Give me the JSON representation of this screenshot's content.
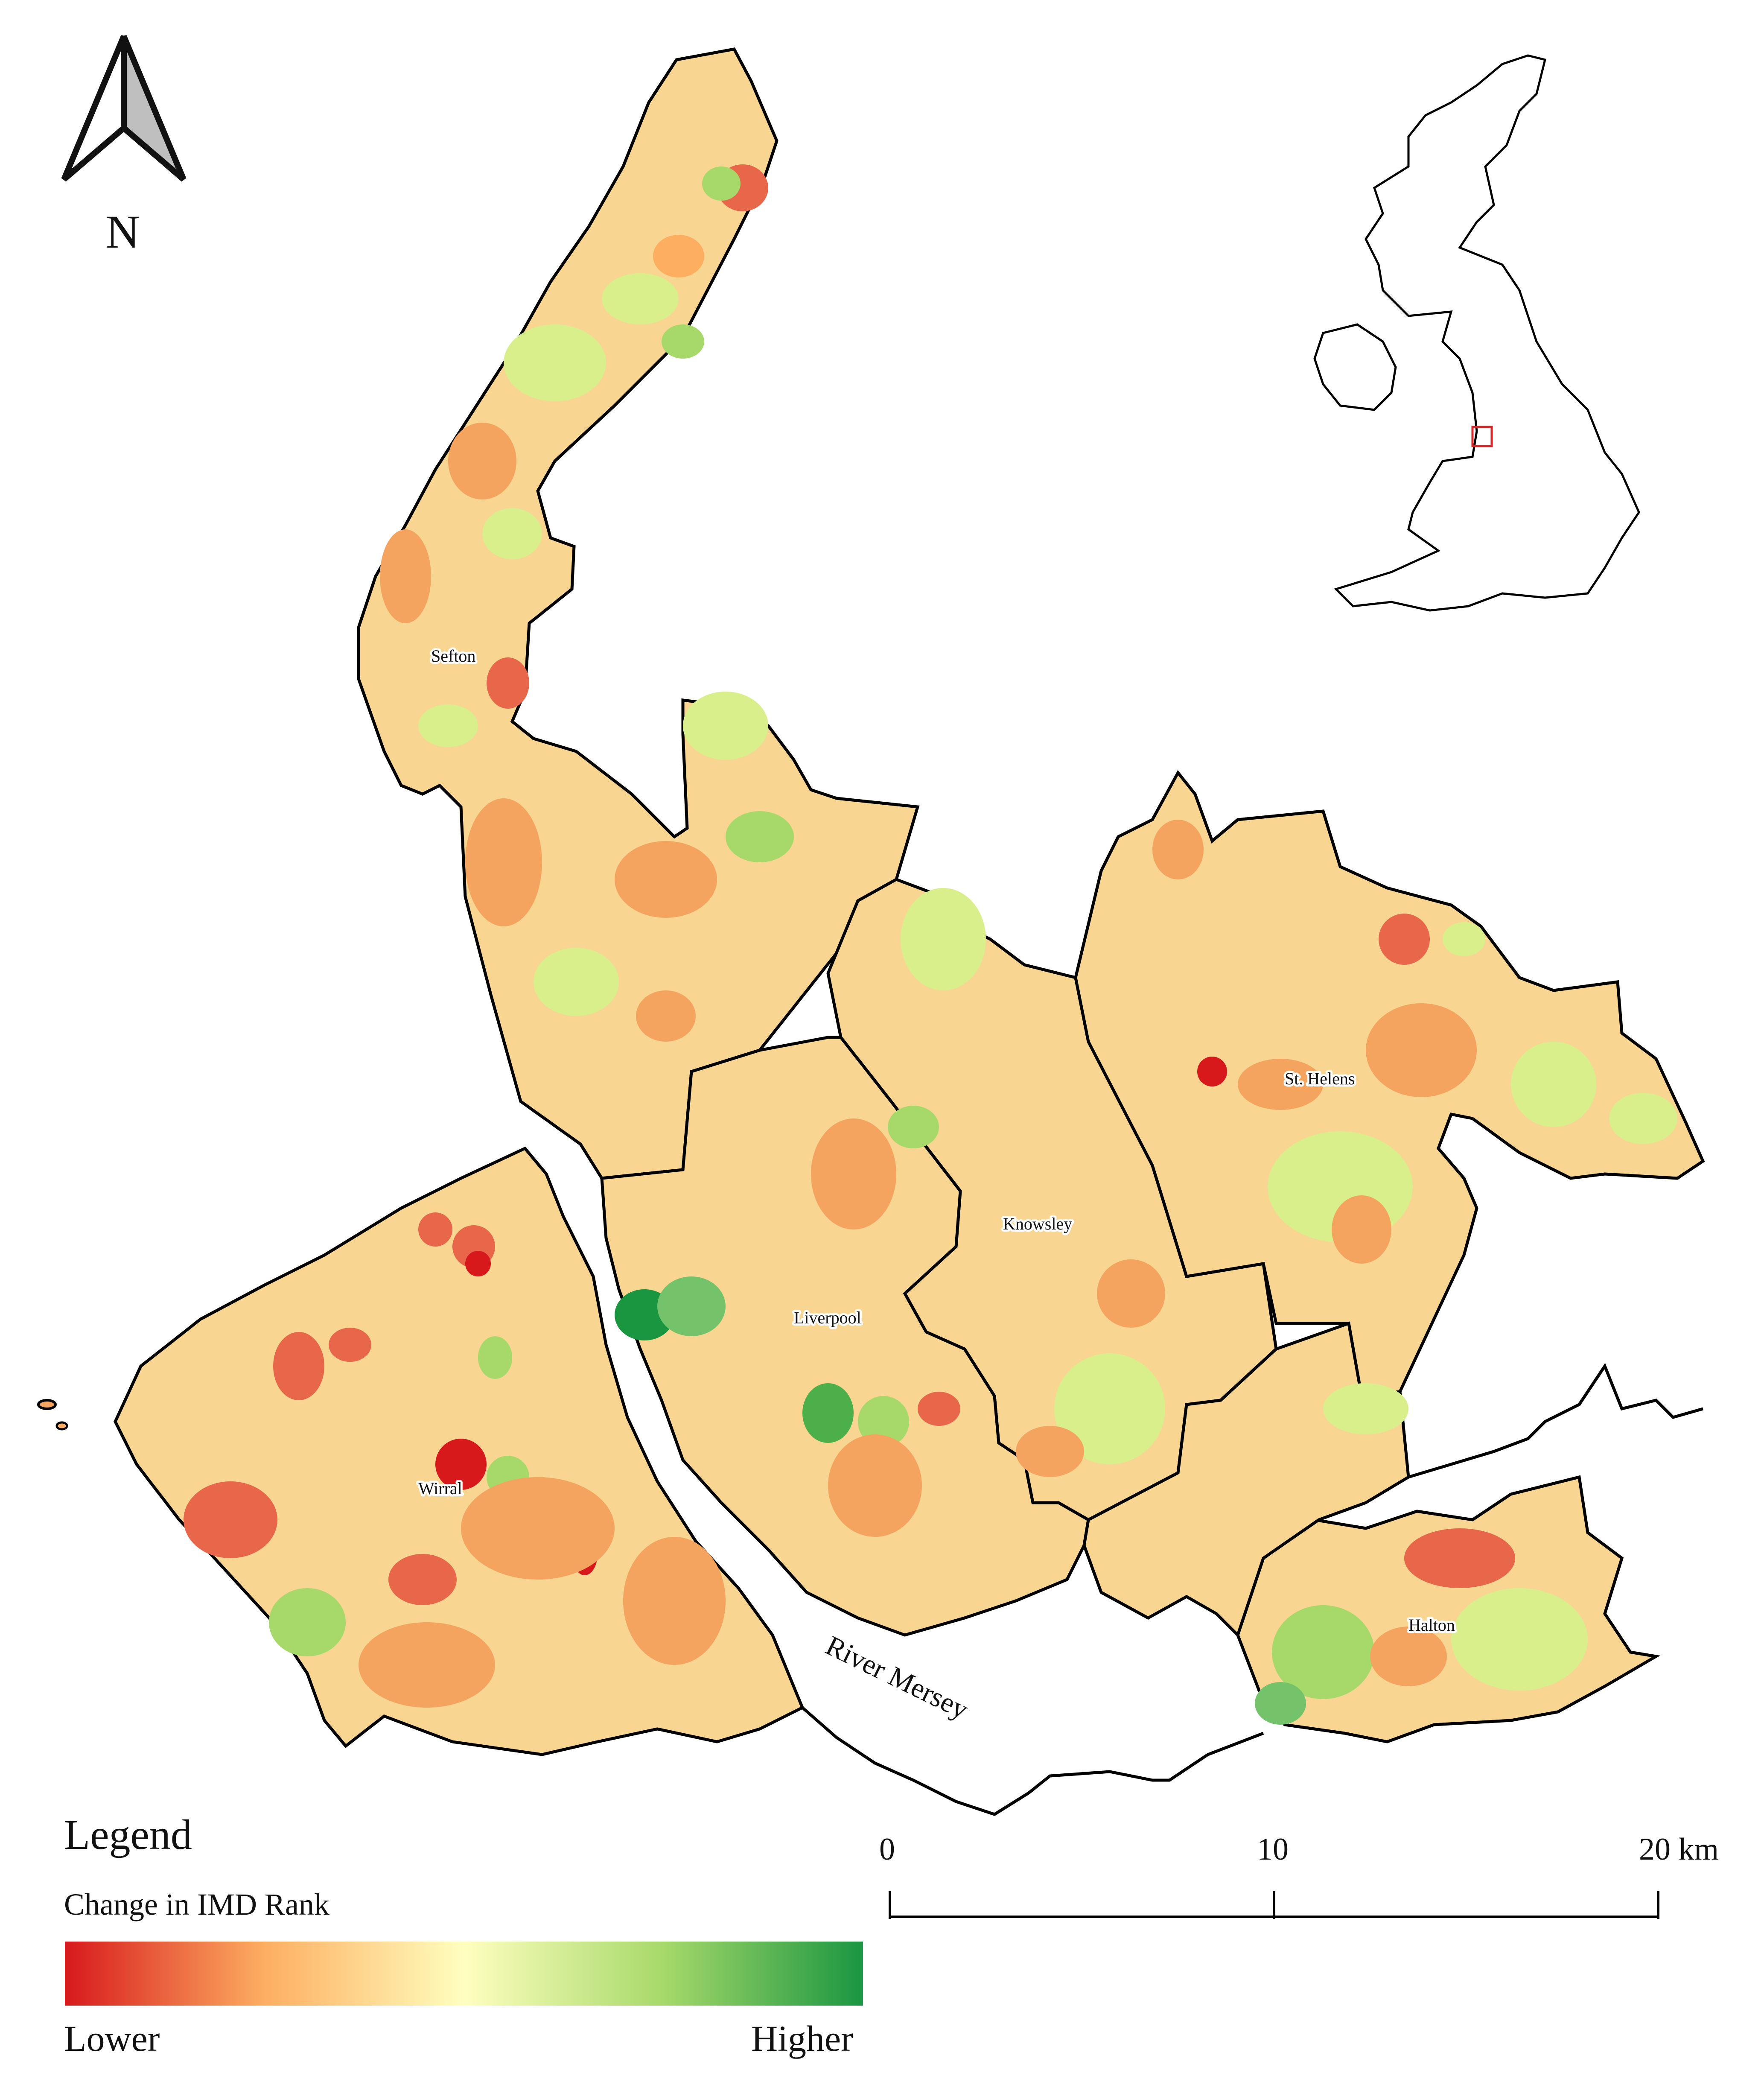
{
  "north_arrow": {
    "label": "N"
  },
  "districts": [
    {
      "name": "Sefton"
    },
    {
      "name": "Knowsley"
    },
    {
      "name": "St. Helens"
    },
    {
      "name": "Liverpool"
    },
    {
      "name": "Wirral"
    },
    {
      "name": "Halton"
    }
  ],
  "river": {
    "name": "River Mersey"
  },
  "legend": {
    "title": "Legend",
    "subtitle": "Change in IMD Rank",
    "low_label": "Lower",
    "high_label": "Higher",
    "colors": [
      "#d7191c",
      "#fdae61",
      "#ffffbf",
      "#a6d96a",
      "#1a9641"
    ]
  },
  "scale_bar": {
    "ticks": [
      "0",
      "10",
      "20 km"
    ]
  },
  "inset": {
    "description_color": "#d62728"
  }
}
